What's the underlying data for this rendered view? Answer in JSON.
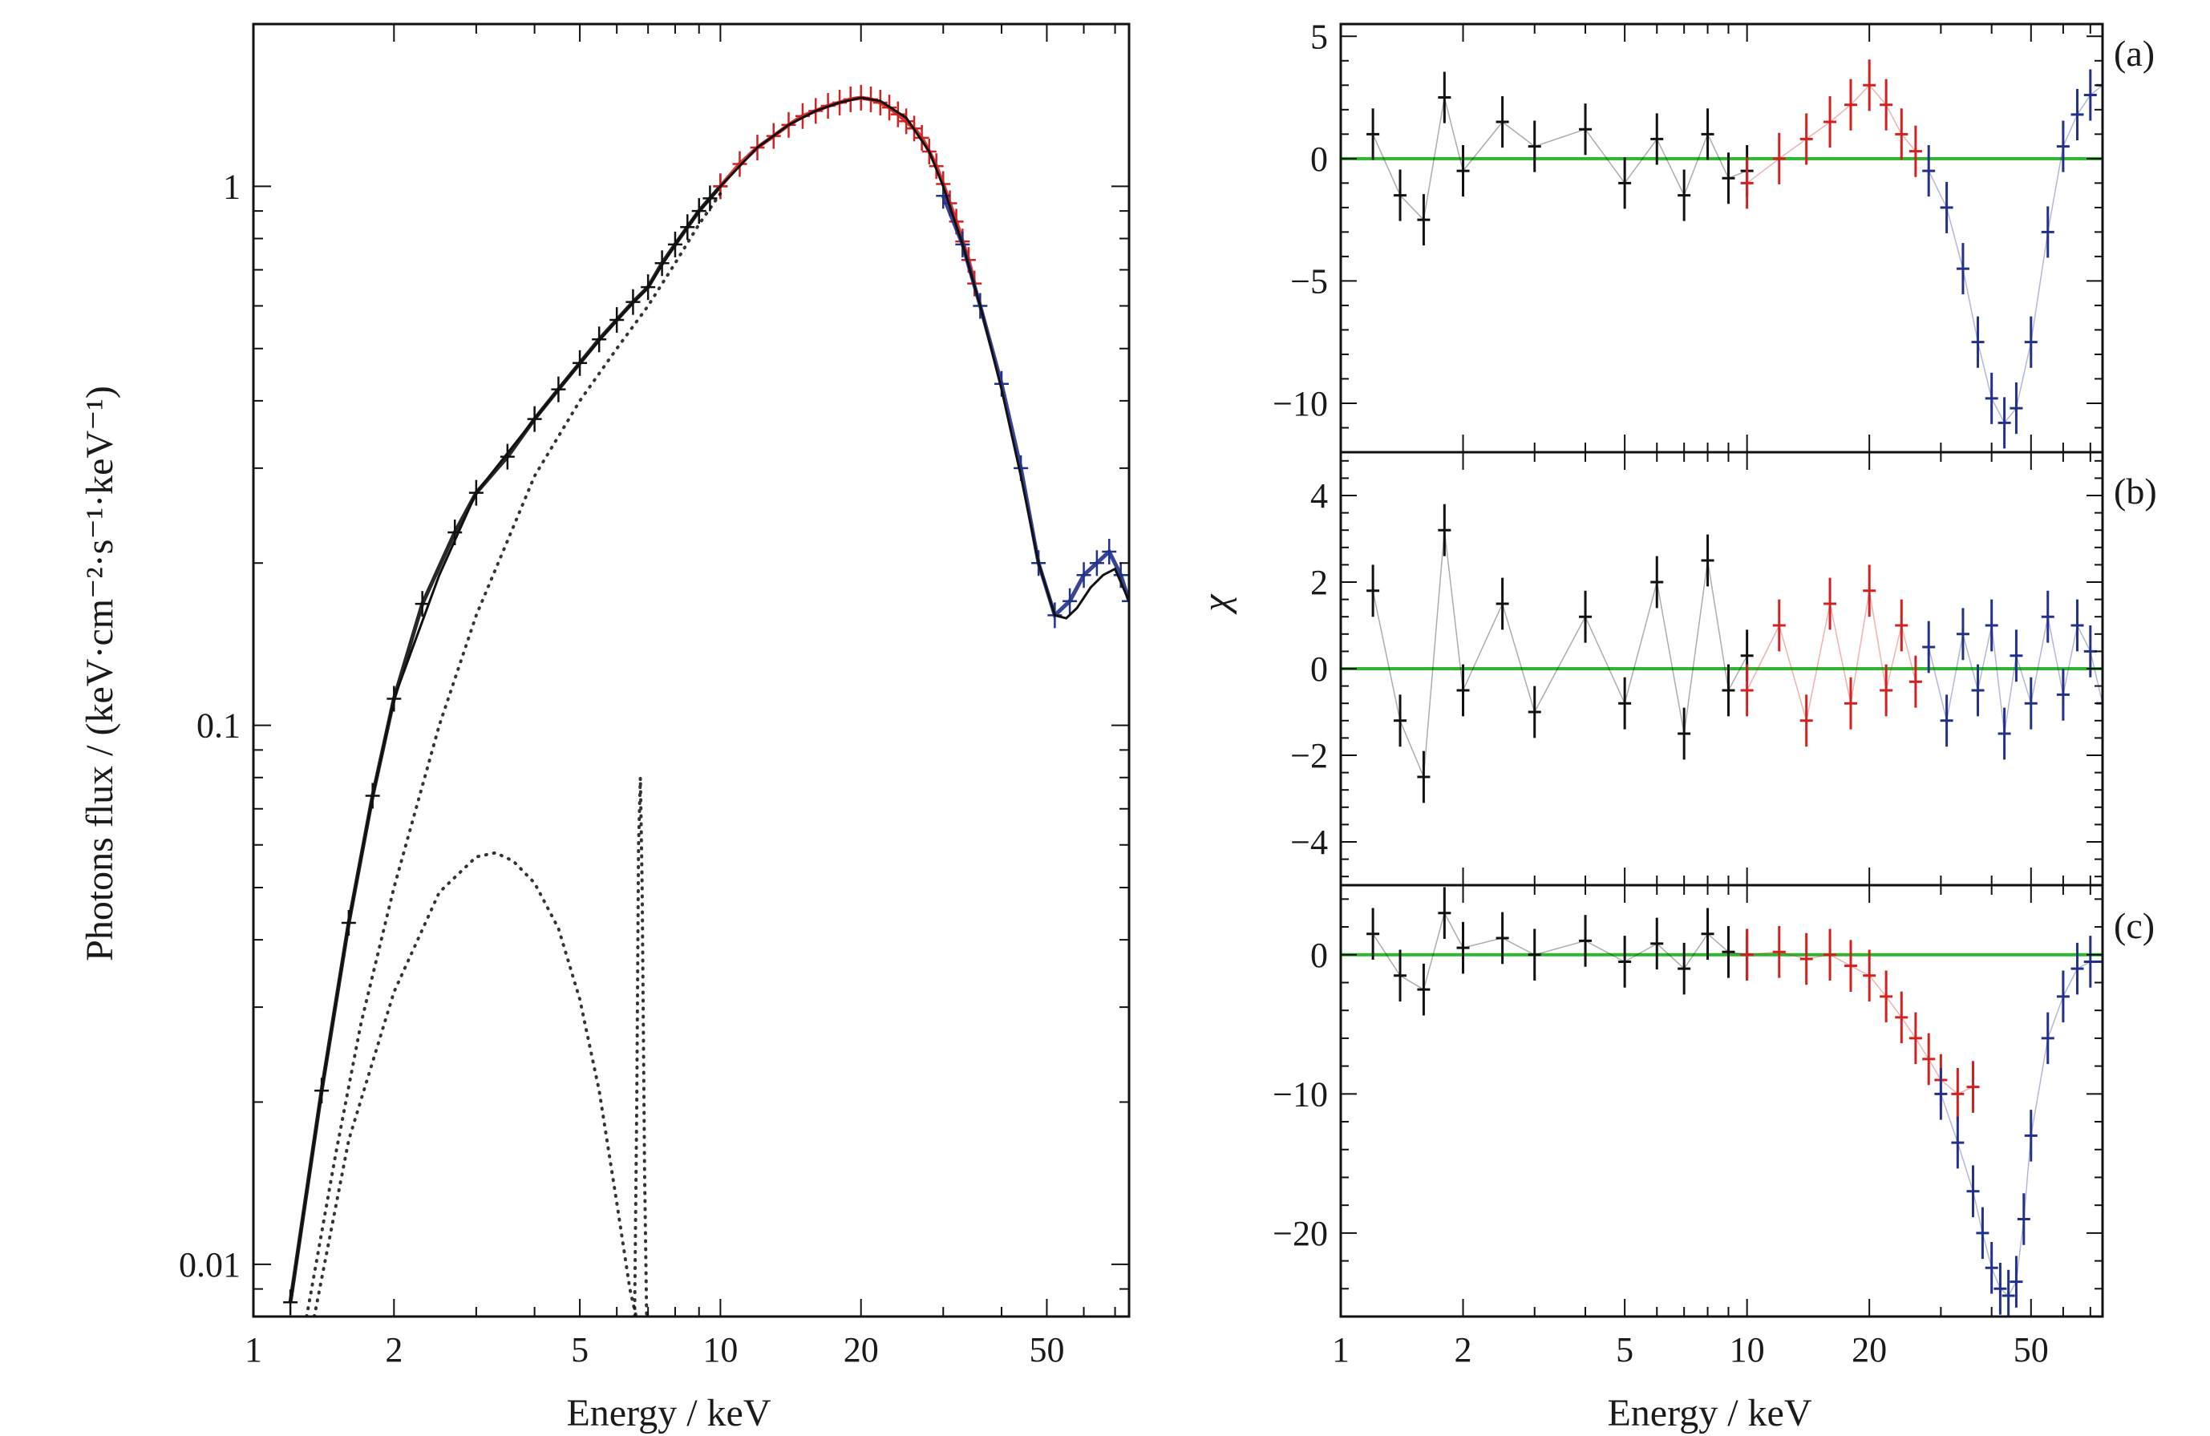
{
  "colors": {
    "detector_a": "#111111",
    "detector_b": "#d32020",
    "detector_c": "#22318a",
    "model": "#111111",
    "zero_line": "#2fb52f",
    "frame": "#111111"
  },
  "chart_data": [
    {
      "type": "line",
      "xscale": "log",
      "yscale": "log",
      "xlabel": "Energy / keV",
      "ylabel": "Photons flux / (keV·cm⁻²·s⁻¹·keV⁻¹)",
      "xlim": [
        1,
        75
      ],
      "ylim": [
        0.008,
        2.0
      ],
      "xticks": [
        1,
        2,
        5,
        10,
        20,
        50
      ],
      "xtick_labels": [
        "1",
        "2",
        "5",
        "10",
        "20",
        "50"
      ],
      "yticks": [
        0.01,
        0.1,
        1
      ],
      "ytick_labels": [
        "0.01",
        "0.1",
        "1"
      ],
      "series": [
        {
          "color_key": "detector_a",
          "style": "errorbar",
          "x": [
            1.2,
            1.4,
            1.6,
            1.8,
            2.0,
            2.3,
            2.7,
            3.0,
            3.5,
            4.0,
            4.5,
            5.0,
            5.5,
            6.0,
            6.5,
            7.0,
            7.5,
            8.0,
            8.5,
            9.0,
            9.5,
            10.0
          ],
          "y": [
            0.0085,
            0.021,
            0.043,
            0.074,
            0.112,
            0.168,
            0.228,
            0.27,
            0.315,
            0.37,
            0.42,
            0.47,
            0.52,
            0.565,
            0.61,
            0.65,
            0.72,
            0.78,
            0.84,
            0.9,
            0.95,
            1.0
          ]
        },
        {
          "color_key": "detector_b",
          "style": "errorbar",
          "x": [
            10,
            11,
            12,
            13,
            14,
            15,
            16,
            17,
            18,
            19,
            20,
            21,
            22,
            23,
            24,
            25,
            26,
            27,
            28,
            29,
            30,
            31,
            32,
            33,
            34,
            35
          ],
          "y": [
            1.0,
            1.1,
            1.18,
            1.24,
            1.3,
            1.35,
            1.38,
            1.41,
            1.43,
            1.45,
            1.46,
            1.45,
            1.43,
            1.4,
            1.36,
            1.32,
            1.28,
            1.23,
            1.16,
            1.09,
            1.01,
            0.93,
            0.86,
            0.79,
            0.73,
            0.66
          ]
        },
        {
          "color_key": "detector_c",
          "style": "errorbar",
          "x": [
            30,
            33,
            36,
            40,
            44,
            48,
            52,
            56,
            60,
            64,
            68,
            72,
            75
          ],
          "y": [
            0.96,
            0.78,
            0.6,
            0.43,
            0.3,
            0.2,
            0.16,
            0.17,
            0.19,
            0.2,
            0.21,
            0.19,
            0.17
          ]
        },
        {
          "color_key": "model",
          "style": "solid",
          "x": [
            1.2,
            1.4,
            1.6,
            1.8,
            2.0,
            2.5,
            3.0,
            4.0,
            5.0,
            6.0,
            7.0,
            8.0,
            9.0,
            10,
            12,
            14,
            16,
            18,
            20,
            22,
            25,
            28,
            30,
            33,
            36,
            40,
            44,
            48,
            52,
            55,
            58,
            62,
            66,
            70,
            75
          ],
          "y": [
            0.0085,
            0.021,
            0.043,
            0.074,
            0.112,
            0.19,
            0.27,
            0.37,
            0.47,
            0.565,
            0.65,
            0.78,
            0.9,
            1.0,
            1.18,
            1.3,
            1.38,
            1.43,
            1.46,
            1.44,
            1.34,
            1.16,
            1.0,
            0.78,
            0.6,
            0.42,
            0.29,
            0.2,
            0.16,
            0.158,
            0.165,
            0.18,
            0.19,
            0.195,
            0.17
          ]
        },
        {
          "color_key": "model",
          "style": "dotted",
          "x": [
            1.3,
            1.5,
            1.7,
            2.0,
            2.5,
            3.0,
            3.5,
            4.0,
            5.0,
            6.0,
            7.0,
            8.0,
            9.0,
            10
          ],
          "y": [
            0.008,
            0.016,
            0.028,
            0.05,
            0.1,
            0.16,
            0.22,
            0.29,
            0.4,
            0.5,
            0.6,
            0.72,
            0.85,
            0.97
          ]
        },
        {
          "color_key": "model",
          "style": "dotted",
          "x": [
            1.35,
            1.6,
            2.0,
            2.5,
            3.0,
            3.3,
            3.6,
            4.0,
            4.5,
            5.0,
            5.5,
            6.0,
            6.4,
            6.6
          ],
          "y": [
            0.008,
            0.017,
            0.032,
            0.049,
            0.057,
            0.058,
            0.056,
            0.051,
            0.042,
            0.031,
            0.021,
            0.013,
            0.009,
            0.008
          ]
        },
        {
          "color_key": "model",
          "style": "dotted",
          "x": [
            6.55,
            6.62,
            6.68,
            6.74,
            6.8,
            6.88,
            6.95
          ],
          "y": [
            0.008,
            0.02,
            0.06,
            0.08,
            0.05,
            0.015,
            0.008
          ]
        }
      ]
    },
    {
      "type": "scatter",
      "panel_label": "(a)",
      "xscale": "log",
      "xlim": [
        1,
        75
      ],
      "ylim": [
        -12,
        5.5
      ],
      "yticks": [
        5,
        0,
        -5,
        -10
      ],
      "ytick_labels": [
        "5",
        "0",
        "−5",
        "−10"
      ],
      "zero_line": 0,
      "series": [
        {
          "color_key": "detector_a",
          "x": [
            1.2,
            1.4,
            1.6,
            1.8,
            2.0,
            2.5,
            3.0,
            4.0,
            5.0,
            6.0,
            7.0,
            8.0,
            9.0,
            10.0
          ],
          "y": [
            1.0,
            -1.5,
            -2.5,
            2.5,
            -0.5,
            1.5,
            0.5,
            1.2,
            -1.0,
            0.8,
            -1.5,
            1.0,
            -0.8,
            -0.5
          ]
        },
        {
          "color_key": "detector_b",
          "x": [
            10,
            12,
            14,
            16,
            18,
            20,
            22,
            24,
            26
          ],
          "y": [
            -1.0,
            0.0,
            0.8,
            1.5,
            2.2,
            3.0,
            2.2,
            1.0,
            0.3
          ]
        },
        {
          "color_key": "detector_c",
          "x": [
            28,
            31,
            34,
            37,
            40,
            43,
            46,
            50,
            55,
            60,
            65,
            70,
            75
          ],
          "y": [
            -0.5,
            -2.0,
            -4.5,
            -7.5,
            -9.8,
            -10.8,
            -10.2,
            -7.5,
            -3.0,
            0.5,
            1.8,
            2.6,
            3.0
          ]
        }
      ]
    },
    {
      "type": "scatter",
      "panel_label": "(b)",
      "ylabel": "χ",
      "xscale": "log",
      "xlim": [
        1,
        75
      ],
      "ylim": [
        -5,
        5
      ],
      "yticks": [
        4,
        2,
        0,
        -2,
        -4
      ],
      "ytick_labels": [
        "4",
        "2",
        "0",
        "−2",
        "−4"
      ],
      "zero_line": 0,
      "series": [
        {
          "color_key": "detector_a",
          "x": [
            1.2,
            1.4,
            1.6,
            1.8,
            2.0,
            2.5,
            3.0,
            4.0,
            5.0,
            6.0,
            7.0,
            8.0,
            9.0,
            10.0
          ],
          "y": [
            1.8,
            -1.2,
            -2.5,
            3.2,
            -0.5,
            1.5,
            -1.0,
            1.2,
            -0.8,
            2.0,
            -1.5,
            2.5,
            -0.5,
            0.3
          ]
        },
        {
          "color_key": "detector_b",
          "x": [
            10,
            12,
            14,
            16,
            18,
            20,
            22,
            24,
            26
          ],
          "y": [
            -0.5,
            1.0,
            -1.2,
            1.5,
            -0.8,
            1.8,
            -0.5,
            1.0,
            -0.3
          ]
        },
        {
          "color_key": "detector_c",
          "x": [
            28,
            31,
            34,
            37,
            40,
            43,
            46,
            50,
            55,
            60,
            65,
            70,
            75
          ],
          "y": [
            0.5,
            -1.2,
            0.8,
            -0.5,
            1.0,
            -1.5,
            0.3,
            -0.8,
            1.2,
            -0.6,
            1.0,
            0.4,
            -0.8
          ]
        }
      ]
    },
    {
      "type": "scatter",
      "panel_label": "(c)",
      "xscale": "log",
      "xlabel": "Energy / keV",
      "xlim": [
        1,
        75
      ],
      "ylim": [
        -26,
        5
      ],
      "xticks": [
        1,
        2,
        5,
        10,
        20,
        50
      ],
      "xtick_labels": [
        "1",
        "2",
        "5",
        "10",
        "20",
        "50"
      ],
      "yticks": [
        0,
        -10,
        -20
      ],
      "ytick_labels": [
        "0",
        "−10",
        "−20"
      ],
      "zero_line": 0,
      "series": [
        {
          "color_key": "detector_a",
          "x": [
            1.2,
            1.4,
            1.6,
            1.8,
            2.0,
            2.5,
            3.0,
            4.0,
            5.0,
            6.0,
            7.0,
            8.0,
            9.0,
            10.0
          ],
          "y": [
            1.5,
            -1.5,
            -2.5,
            3.0,
            0.5,
            1.2,
            0.0,
            1.0,
            -0.5,
            0.8,
            -1.0,
            1.5,
            0.2,
            0.0
          ]
        },
        {
          "color_key": "detector_b",
          "x": [
            10,
            12,
            14,
            16,
            18,
            20,
            22,
            24,
            26,
            28,
            30,
            33,
            36
          ],
          "y": [
            0.0,
            0.2,
            -0.3,
            0.0,
            -0.8,
            -1.5,
            -3.0,
            -4.5,
            -6.0,
            -7.5,
            -9.0,
            -10.0,
            -9.5
          ]
        },
        {
          "color_key": "detector_c",
          "x": [
            30,
            33,
            36,
            38,
            40,
            42,
            44,
            46,
            48,
            50,
            55,
            60,
            65,
            70,
            75
          ],
          "y": [
            -10.0,
            -13.5,
            -17.0,
            -20.0,
            -22.5,
            -24.0,
            -24.5,
            -23.5,
            -19.0,
            -13.0,
            -6.0,
            -3.0,
            -1.0,
            -0.5,
            -0.5
          ]
        }
      ]
    }
  ]
}
